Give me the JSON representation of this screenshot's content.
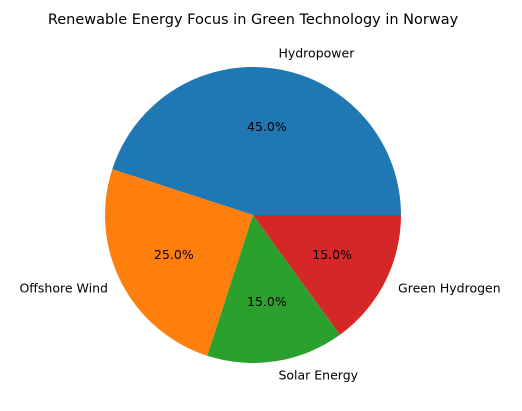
{
  "chart_data": {
    "type": "pie",
    "title": "Renewable Energy Focus in Green Technology in Norway",
    "categories": [
      "Hydropower",
      "Offshore Wind",
      "Solar Energy",
      "Green Hydrogen"
    ],
    "values": [
      45,
      25,
      15,
      15
    ],
    "percent_labels": [
      "45.0%",
      "25.0%",
      "15.0%",
      "15.0%"
    ],
    "colors": [
      "#1f77b4",
      "#ff7f0e",
      "#2ca02c",
      "#d62728"
    ],
    "start_angle_deg": 0,
    "direction": "counterclockwise",
    "legend": "none"
  }
}
